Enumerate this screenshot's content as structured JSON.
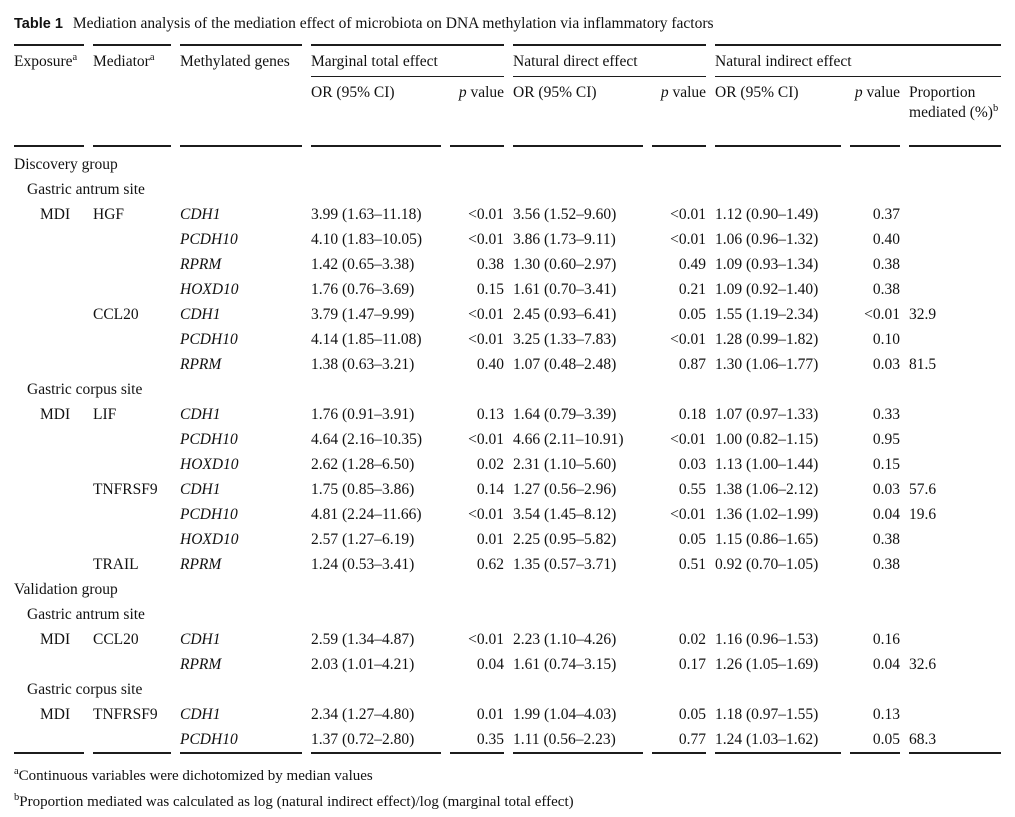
{
  "table": {
    "label": "Table 1",
    "caption": "Mediation analysis of the mediation effect of microbiota on DNA methylation via inflammatory factors",
    "columns": {
      "exposure": "Exposure",
      "exposure_sup": "a",
      "mediator": "Mediator",
      "mediator_sup": "a",
      "genes": "Methylated genes",
      "marginal_total_effect": "Marginal total effect",
      "natural_direct_effect": "Natural direct effect",
      "natural_indirect_effect": "Natural indirect effect",
      "or_ci": "OR (95% CI)",
      "p_italic": "p",
      "p_rest": " value",
      "proportion_mediated": "Proportion mediated (%)",
      "proportion_sup": "b"
    },
    "rows": [
      {
        "type": "section",
        "level": 0,
        "label": "Discovery group"
      },
      {
        "type": "section",
        "level": 1,
        "label": "Gastric antrum site"
      },
      {
        "type": "data",
        "exposure": "MDI",
        "mediator": "HGF",
        "gene": "CDH1",
        "mt_or": "3.99 (1.63–11.18)",
        "mt_p": "<0.01",
        "nd_or": "3.56 (1.52–9.60)",
        "nd_p": "<0.01",
        "ni_or": "1.12 (0.90–1.49)",
        "ni_p": "0.37",
        "prop": ""
      },
      {
        "type": "data",
        "exposure": "",
        "mediator": "",
        "gene": "PCDH10",
        "mt_or": "4.10 (1.83–10.05)",
        "mt_p": "<0.01",
        "nd_or": "3.86 (1.73–9.11)",
        "nd_p": "<0.01",
        "ni_or": "1.06 (0.96–1.32)",
        "ni_p": "0.40",
        "prop": ""
      },
      {
        "type": "data",
        "exposure": "",
        "mediator": "",
        "gene": "RPRM",
        "mt_or": "1.42 (0.65–3.38)",
        "mt_p": "0.38",
        "nd_or": "1.30 (0.60–2.97)",
        "nd_p": "0.49",
        "ni_or": "1.09 (0.93–1.34)",
        "ni_p": "0.38",
        "prop": ""
      },
      {
        "type": "data",
        "exposure": "",
        "mediator": "",
        "gene": "HOXD10",
        "mt_or": "1.76 (0.76–3.69)",
        "mt_p": "0.15",
        "nd_or": "1.61 (0.70–3.41)",
        "nd_p": "0.21",
        "ni_or": "1.09 (0.92–1.40)",
        "ni_p": "0.38",
        "prop": ""
      },
      {
        "type": "data",
        "exposure": "",
        "mediator": "CCL20",
        "gene": "CDH1",
        "mt_or": "3.79 (1.47–9.99)",
        "mt_p": "<0.01",
        "nd_or": "2.45 (0.93–6.41)",
        "nd_p": "0.05",
        "ni_or": "1.55 (1.19–2.34)",
        "ni_p": "<0.01",
        "prop": "32.9"
      },
      {
        "type": "data",
        "exposure": "",
        "mediator": "",
        "gene": "PCDH10",
        "mt_or": "4.14 (1.85–11.08)",
        "mt_p": "<0.01",
        "nd_or": "3.25 (1.33–7.83)",
        "nd_p": "<0.01",
        "ni_or": "1.28 (0.99–1.82)",
        "ni_p": "0.10",
        "prop": ""
      },
      {
        "type": "data",
        "exposure": "",
        "mediator": "",
        "gene": "RPRM",
        "mt_or": "1.38 (0.63–3.21)",
        "mt_p": "0.40",
        "nd_or": "1.07 (0.48–2.48)",
        "nd_p": "0.87",
        "ni_or": "1.30 (1.06–1.77)",
        "ni_p": "0.03",
        "prop": "81.5"
      },
      {
        "type": "section",
        "level": 1,
        "label": "Gastric corpus site"
      },
      {
        "type": "data",
        "exposure": "MDI",
        "mediator": "LIF",
        "gene": "CDH1",
        "mt_or": "1.76 (0.91–3.91)",
        "mt_p": "0.13",
        "nd_or": "1.64 (0.79–3.39)",
        "nd_p": "0.18",
        "ni_or": "1.07 (0.97–1.33)",
        "ni_p": "0.33",
        "prop": ""
      },
      {
        "type": "data",
        "exposure": "",
        "mediator": "",
        "gene": "PCDH10",
        "mt_or": "4.64 (2.16–10.35)",
        "mt_p": "<0.01",
        "nd_or": "4.66 (2.11–10.91)",
        "nd_p": "<0.01",
        "ni_or": "1.00 (0.82–1.15)",
        "ni_p": "0.95",
        "prop": ""
      },
      {
        "type": "data",
        "exposure": "",
        "mediator": "",
        "gene": "HOXD10",
        "mt_or": "2.62 (1.28–6.50)",
        "mt_p": "0.02",
        "nd_or": "2.31 (1.10–5.60)",
        "nd_p": "0.03",
        "ni_or": "1.13 (1.00–1.44)",
        "ni_p": "0.15",
        "prop": ""
      },
      {
        "type": "data",
        "exposure": "",
        "mediator": "TNFRSF9",
        "gene": "CDH1",
        "mt_or": "1.75 (0.85–3.86)",
        "mt_p": "0.14",
        "nd_or": "1.27 (0.56–2.96)",
        "nd_p": "0.55",
        "ni_or": "1.38 (1.06–2.12)",
        "ni_p": "0.03",
        "prop": "57.6"
      },
      {
        "type": "data",
        "exposure": "",
        "mediator": "",
        "gene": "PCDH10",
        "mt_or": "4.81 (2.24–11.66)",
        "mt_p": "<0.01",
        "nd_or": "3.54 (1.45–8.12)",
        "nd_p": "<0.01",
        "ni_or": "1.36 (1.02–1.99)",
        "ni_p": "0.04",
        "prop": "19.6"
      },
      {
        "type": "data",
        "exposure": "",
        "mediator": "",
        "gene": "HOXD10",
        "mt_or": "2.57 (1.27–6.19)",
        "mt_p": "0.01",
        "nd_or": "2.25 (0.95–5.82)",
        "nd_p": "0.05",
        "ni_or": "1.15 (0.86–1.65)",
        "ni_p": "0.38",
        "prop": ""
      },
      {
        "type": "data",
        "exposure": "",
        "mediator": "TRAIL",
        "gene": "RPRM",
        "mt_or": "1.24 (0.53–3.41)",
        "mt_p": "0.62",
        "nd_or": "1.35 (0.57–3.71)",
        "nd_p": "0.51",
        "ni_or": "0.92 (0.70–1.05)",
        "ni_p": "0.38",
        "prop": ""
      },
      {
        "type": "section",
        "level": 0,
        "label": "Validation group"
      },
      {
        "type": "section",
        "level": 1,
        "label": "Gastric antrum site"
      },
      {
        "type": "data",
        "exposure": "MDI",
        "mediator": "CCL20",
        "gene": "CDH1",
        "mt_or": "2.59 (1.34–4.87)",
        "mt_p": "<0.01",
        "nd_or": "2.23 (1.10–4.26)",
        "nd_p": "0.02",
        "ni_or": "1.16 (0.96–1.53)",
        "ni_p": "0.16",
        "prop": ""
      },
      {
        "type": "data",
        "exposure": "",
        "mediator": "",
        "gene": "RPRM",
        "mt_or": "2.03 (1.01–4.21)",
        "mt_p": "0.04",
        "nd_or": "1.61 (0.74–3.15)",
        "nd_p": "0.17",
        "ni_or": "1.26 (1.05–1.69)",
        "ni_p": "0.04",
        "prop": "32.6"
      },
      {
        "type": "section",
        "level": 1,
        "label": "Gastric corpus site"
      },
      {
        "type": "data",
        "exposure": "MDI",
        "mediator": "TNFRSF9",
        "gene": "CDH1",
        "mt_or": "2.34 (1.27–4.80)",
        "mt_p": "0.01",
        "nd_or": "1.99 (1.04–4.03)",
        "nd_p": "0.05",
        "ni_or": "1.18 (0.97–1.55)",
        "ni_p": "0.13",
        "prop": ""
      },
      {
        "type": "data",
        "exposure": "",
        "mediator": "",
        "gene": "PCDH10",
        "mt_or": "1.37 (0.72–2.80)",
        "mt_p": "0.35",
        "nd_or": "1.11 (0.56–2.23)",
        "nd_p": "0.77",
        "ni_or": "1.24 (1.03–1.62)",
        "ni_p": "0.05",
        "prop": "68.3"
      }
    ],
    "footnotes": [
      {
        "sup": "a",
        "text": "Continuous variables were dichotomized by median values"
      },
      {
        "sup": "b",
        "text": "Proportion mediated was calculated as log (natural indirect effect)/log (marginal total effect)"
      }
    ]
  }
}
